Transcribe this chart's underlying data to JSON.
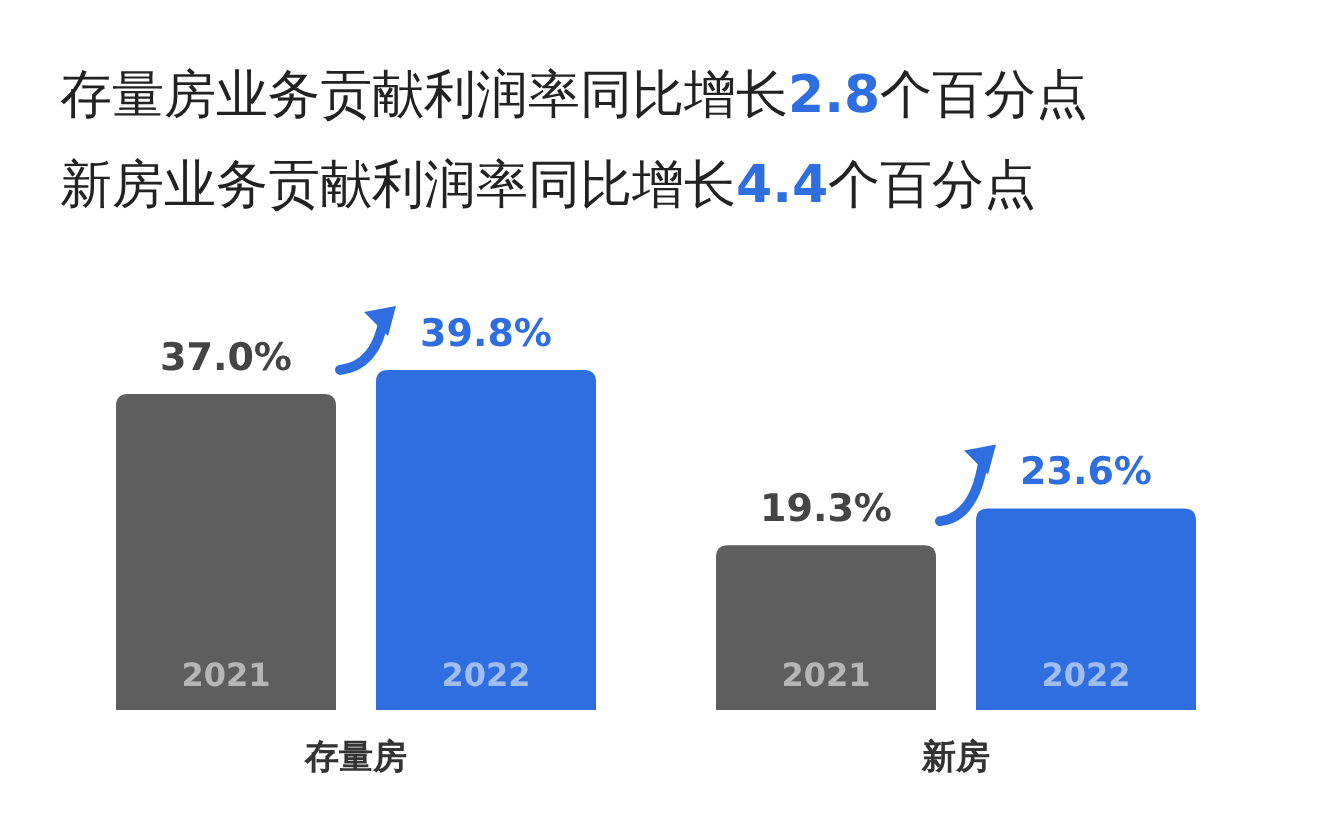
{
  "chart_data": {
    "type": "bar",
    "title": "存量房业务贡献利润率同比增长**2.8**个百分点",
    "subtitle": "新房业务贡献利润率同比增长**4.4**个百分点",
    "categories": [
      "存量房",
      "新房"
    ],
    "series": [
      {
        "name": "2021",
        "color": "#5e5e5e",
        "values": [
          37.0,
          19.3
        ],
        "value_labels": [
          "37.0%",
          "19.3%"
        ]
      },
      {
        "name": "2022",
        "color": "#2f6ee0",
        "values": [
          39.8,
          23.6
        ],
        "value_labels": [
          "39.8%",
          "23.6%"
        ]
      }
    ],
    "legend": false,
    "grid": false
  }
}
